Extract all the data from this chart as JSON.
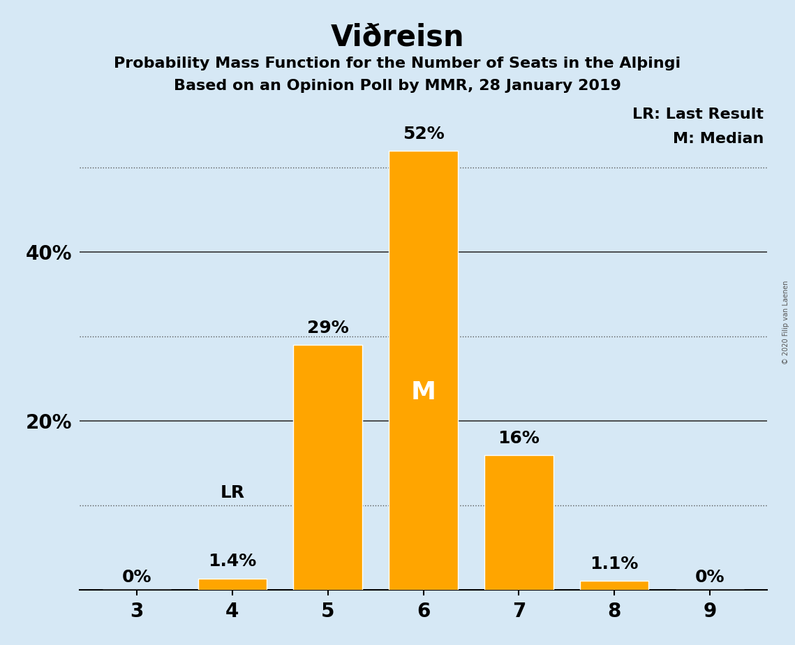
{
  "title": "Viðreisn",
  "subtitle1": "Probability Mass Function for the Number of Seats in the Alþingi",
  "subtitle2": "Based on an Opinion Poll by MMR, 28 January 2019",
  "copyright": "© 2020 Filip van Laenen",
  "categories": [
    3,
    4,
    5,
    6,
    7,
    8,
    9
  ],
  "values": [
    0.0,
    1.4,
    29.0,
    52.0,
    16.0,
    1.1,
    0.0
  ],
  "bar_color": "#FFA500",
  "background_color": "#D6E8F5",
  "bar_labels": [
    "0%",
    "1.4%",
    "29%",
    "52%",
    "16%",
    "1.1%",
    "0%"
  ],
  "median_bar": 6,
  "last_result_bar": 4,
  "legend_lr": "LR: Last Result",
  "legend_m": "M: Median",
  "median_label": "M",
  "lr_label": "LR",
  "ylim": [
    0,
    58
  ],
  "yticks_solid": [
    20,
    40
  ],
  "ytick_labels_solid": [
    "20%",
    "40%"
  ],
  "yticks_dotted": [
    10,
    30,
    50
  ],
  "bar_width": 0.72,
  "title_fontsize": 30,
  "subtitle_fontsize": 16,
  "axis_fontsize": 20,
  "bar_label_fontsize": 18,
  "legend_fontsize": 16,
  "median_label_fontsize": 26,
  "lr_label_fontsize": 18,
  "copyright_fontsize": 7
}
